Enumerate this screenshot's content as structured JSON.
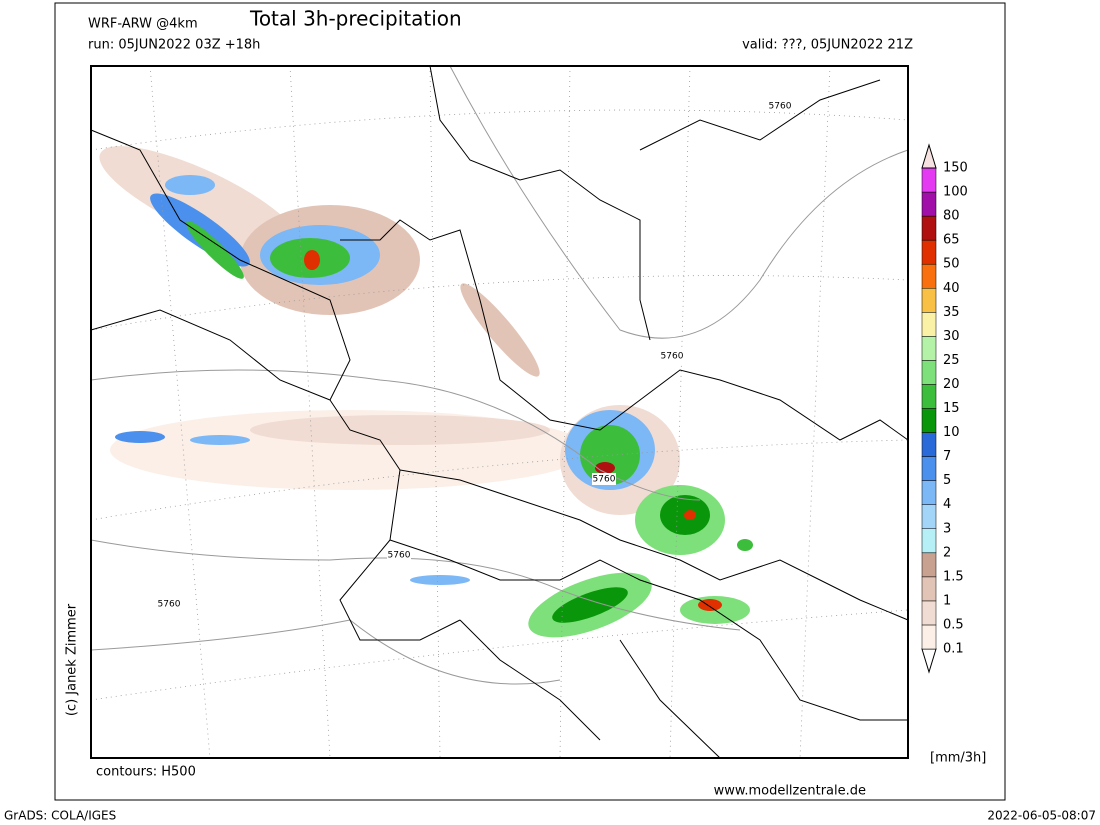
{
  "header": {
    "model": "WRF-ARW @4km",
    "title": "Total 3h-precipitation",
    "run": "run: 05JUN2022 03Z +18h",
    "valid": "valid: ???, 05JUN2022 21Z"
  },
  "map": {
    "contour_labels": [
      "5760",
      "5760",
      "5760",
      "5760",
      "5760"
    ],
    "contours_note": "contours: H500",
    "website": "www.modellzentrale.de",
    "copyright": "(c) Janek Zimmer"
  },
  "colorbar": {
    "unit": "[mm/3h]",
    "labels": [
      "0.1",
      "0.5",
      "1",
      "1.5",
      "2",
      "3",
      "4",
      "5",
      "7",
      "10",
      "15",
      "20",
      "25",
      "30",
      "35",
      "40",
      "50",
      "65",
      "80",
      "100",
      "150"
    ],
    "colors": [
      "#ffffff",
      "#fbefe8",
      "#f0dcd2",
      "#e2c4b6",
      "#c9a191",
      "#b6eff6",
      "#a3d5f8",
      "#7cb7f6",
      "#4a90ec",
      "#2a6ad8",
      "#0a960a",
      "#3cbe3c",
      "#7ee07a",
      "#b4f2a8",
      "#fbf1a6",
      "#f9c046",
      "#f8700f",
      "#e03000",
      "#b01010",
      "#a010a8",
      "#e33af2",
      "#f6e2e0"
    ]
  },
  "footer": {
    "software": "GrADS: COLA/IGES",
    "timestamp": "2022-06-05-08:07"
  }
}
